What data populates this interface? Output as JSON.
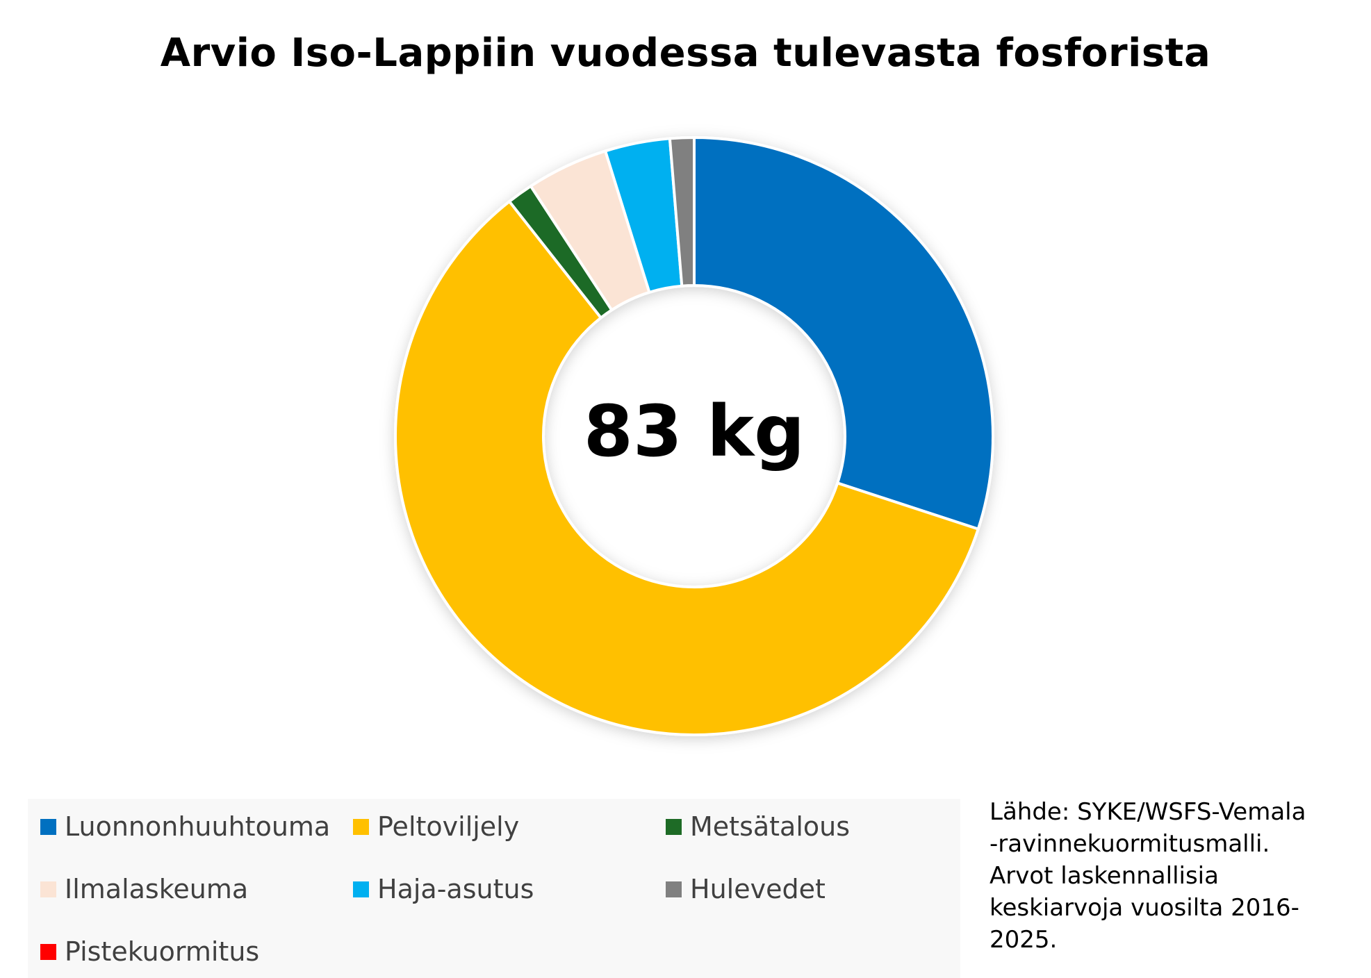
{
  "chart_data": {
    "type": "pie",
    "title": "Arvio Iso-Lappiin vuodessa tulevasta fosforista",
    "center_label": "83 kg",
    "categories": [
      "Luonnonhuuhtouma",
      "Peltoviljely",
      "Metsätalous",
      "Ilmalaskeuma",
      "Haja-asutus",
      "Hulevedet",
      "Pistekuormitus"
    ],
    "values": [
      30.0,
      59.3,
      1.4,
      4.4,
      3.5,
      1.3,
      0.0
    ],
    "colors": [
      "#0070C0",
      "#FFC000",
      "#1E6B26",
      "#FBE4D5",
      "#00B0F0",
      "#808080",
      "#FF0000"
    ],
    "legend_position": "bottom",
    "source_lines": [
      "Lähde: SYKE/WSFS-Vemala",
      "-ravinnekuormitusmalli.",
      "Arvot laskennallisia",
      "keskiarvoja vuosilta 2016-",
      "2025."
    ]
  }
}
